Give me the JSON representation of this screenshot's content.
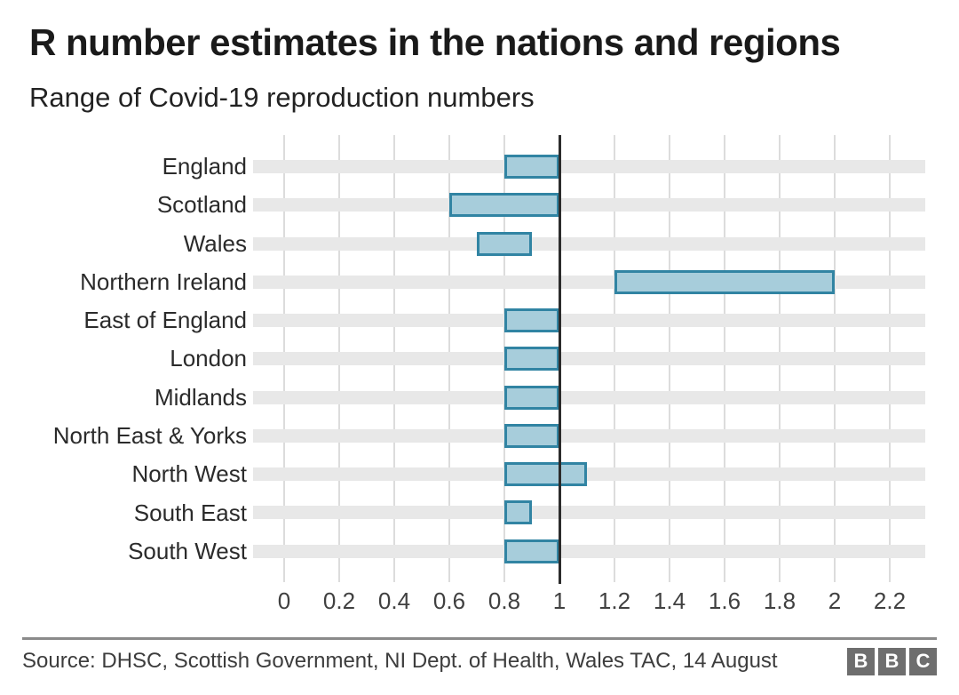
{
  "header": {
    "title": "R number estimates in the nations and regions",
    "subtitle": "Range of Covid-19 reproduction numbers"
  },
  "chart_data": {
    "type": "bar",
    "orientation": "horizontal-range",
    "categories": [
      "England",
      "Scotland",
      "Wales",
      "Northern Ireland",
      "East of England",
      "London",
      "Midlands",
      "North East & Yorks",
      "North West",
      "South East",
      "South West"
    ],
    "ranges": [
      {
        "low": 0.8,
        "high": 1.0
      },
      {
        "low": 0.6,
        "high": 1.0
      },
      {
        "low": 0.7,
        "high": 0.9
      },
      {
        "low": 1.2,
        "high": 2.0
      },
      {
        "low": 0.8,
        "high": 1.0
      },
      {
        "low": 0.8,
        "high": 1.0
      },
      {
        "low": 0.8,
        "high": 1.0
      },
      {
        "low": 0.8,
        "high": 1.0
      },
      {
        "low": 0.8,
        "high": 1.1
      },
      {
        "low": 0.8,
        "high": 0.9
      },
      {
        "low": 0.8,
        "high": 1.0
      }
    ],
    "title": "R number estimates in the nations and regions",
    "subtitle": "Range of Covid-19 reproduction numbers",
    "xlabel": "",
    "ylabel": "",
    "xlim": [
      -0.113,
      2.329
    ],
    "baseline_value": 1,
    "grid": true,
    "ticks": [
      {
        "value": 0.0,
        "label": "0"
      },
      {
        "value": 0.2,
        "label": "0.2"
      },
      {
        "value": 0.4,
        "label": "0.4"
      },
      {
        "value": 0.6,
        "label": "0.6"
      },
      {
        "value": 0.8,
        "label": "0.8"
      },
      {
        "value": 1.0,
        "label": "1"
      },
      {
        "value": 1.2,
        "label": "1.2"
      },
      {
        "value": 1.4,
        "label": "1.4"
      },
      {
        "value": 1.6,
        "label": "1.6"
      },
      {
        "value": 1.8,
        "label": "1.8"
      },
      {
        "value": 2.0,
        "label": "2"
      },
      {
        "value": 2.2,
        "label": "2.2"
      }
    ]
  },
  "colors": {
    "bar_fill": "#a7cddb",
    "bar_border": "#3184a3",
    "row_band": "#e8e8e8",
    "gridline": "#dcdcdc",
    "baseline": "#2b2b2b",
    "divider": "#8a8a8a",
    "bbc_box": "#6e6e6e"
  },
  "footer": {
    "source": "Source: DHSC, Scottish Government, NI Dept. of Health, Wales TAC, 14 August",
    "bbc_logo": [
      "B",
      "B",
      "C"
    ]
  }
}
